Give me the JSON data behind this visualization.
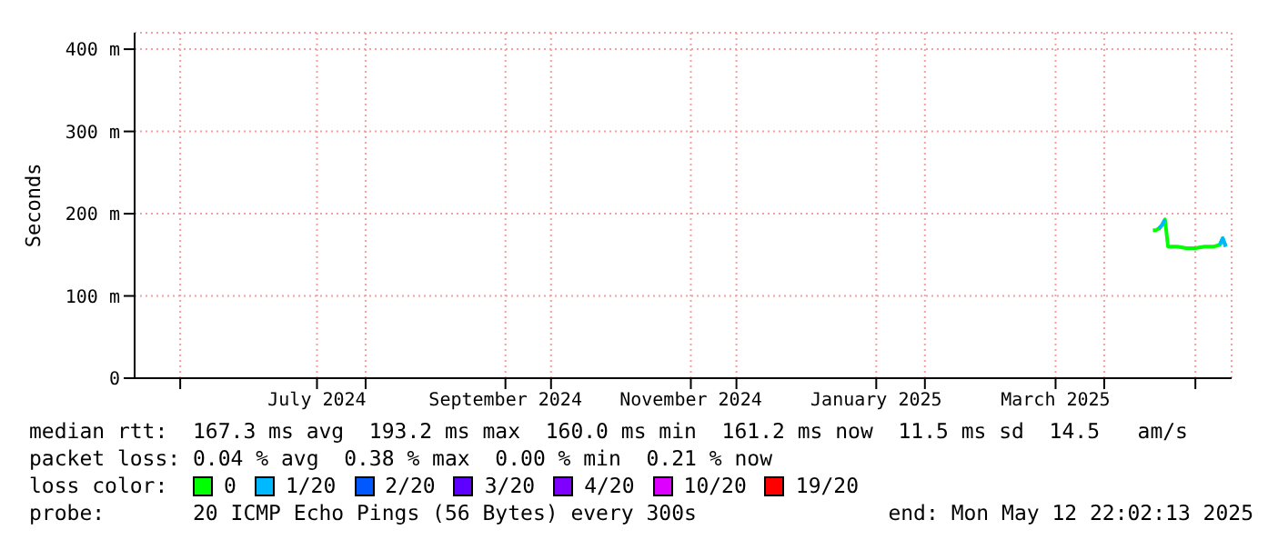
{
  "chart_data": {
    "type": "line",
    "ylabel": "Seconds",
    "legend_title": "loss color:",
    "legend": "bottom",
    "grid": true,
    "marker": "none",
    "line_style": "solid",
    "x": [
      "2025-04-17",
      "2025-04-18",
      "2025-04-19",
      "2025-04-20",
      "2025-04-21",
      "2025-04-22",
      "2025-04-25",
      "2025-04-28",
      "2025-05-01",
      "2025-05-04",
      "2025-05-07",
      "2025-05-09",
      "2025-05-10",
      "2025-05-11"
    ],
    "xlim": [
      "2024-05-17",
      "2025-05-12T22:02"
    ],
    "xticks": [
      {
        "value": "2024-06-01",
        "label": null
      },
      {
        "value": "2024-07-16",
        "label": "July 2024"
      },
      {
        "value": "2024-08-01",
        "label": null
      },
      {
        "value": "2024-09-16",
        "label": "September 2024"
      },
      {
        "value": "2024-10-01",
        "label": null
      },
      {
        "value": "2024-11-16",
        "label": "November 2024"
      },
      {
        "value": "2024-12-01",
        "label": null
      },
      {
        "value": "2025-01-16",
        "label": "January 2025"
      },
      {
        "value": "2025-02-01",
        "label": null
      },
      {
        "value": "2025-03-16",
        "label": "March 2025"
      },
      {
        "value": "2025-04-01",
        "label": null
      },
      {
        "value": "2025-05-01",
        "label": null
      }
    ],
    "ylim": [
      0,
      420
    ],
    "yticks": [
      0,
      {
        "value": 100,
        "label": "100 m"
      },
      {
        "value": 200,
        "label": "200 m"
      },
      {
        "value": 300,
        "label": "300 m"
      },
      {
        "value": 400,
        "label": "400 m"
      }
    ],
    "series": [
      {
        "name": "0",
        "color": "#00ff00",
        "values": [
          180,
          180,
          182,
          186,
          193,
          160,
          160,
          158,
          158,
          160,
          160,
          162,
          170,
          160
        ]
      },
      {
        "name": "1/20",
        "color": "#00b8ff",
        "values": [
          null,
          null,
          182,
          186,
          193,
          null,
          null,
          null,
          null,
          null,
          null,
          162,
          170,
          160
        ]
      },
      {
        "name": "2/20",
        "color": "#0059ff",
        "values": [
          null,
          null,
          null,
          null,
          null,
          null,
          null,
          null,
          null,
          null,
          null,
          null,
          null,
          null
        ]
      },
      {
        "name": "3/20",
        "color": "#5e00ff",
        "values": [
          null,
          null,
          null,
          null,
          null,
          null,
          null,
          null,
          null,
          null,
          null,
          null,
          null,
          null
        ]
      },
      {
        "name": "4/20",
        "color": "#7e00ff",
        "values": [
          null,
          null,
          null,
          null,
          null,
          null,
          null,
          null,
          null,
          null,
          null,
          null,
          null,
          null
        ]
      },
      {
        "name": "10/20",
        "color": "#dd00ff",
        "values": [
          null,
          null,
          null,
          null,
          null,
          null,
          null,
          null,
          null,
          null,
          null,
          null,
          null,
          null
        ]
      },
      {
        "name": "19/20",
        "color": "#ff0000",
        "values": [
          null,
          null,
          null,
          null,
          null,
          null,
          null,
          null,
          null,
          null,
          null,
          null,
          null,
          null
        ]
      }
    ],
    "annotations": [
      "median rtt:  167.3 ms avg  193.2 ms max  160.0 ms min  161.2 ms now  11.5 ms sd  14.5   am/s",
      "packet loss: 0.04 % avg  0.38 % max  0.00 % min  0.21 % now",
      "probe:       20 ICMP Echo Pings (56 Bytes) every 300s",
      "end: Mon May 12 22:02:13 2025"
    ]
  }
}
